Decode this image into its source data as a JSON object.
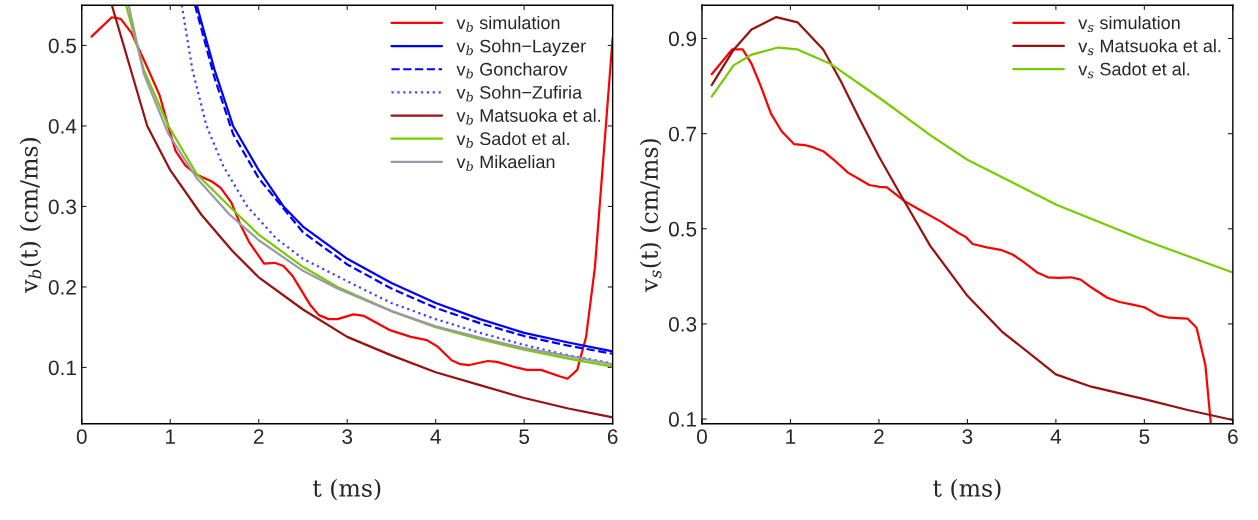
{
  "chart_data": [
    {
      "type": "line",
      "xlabel": "t (ms)",
      "ylabel": "v$_{b}$(t) (cm/ms)",
      "xlim": [
        0,
        6
      ],
      "ylim": [
        0.03,
        0.55
      ],
      "xticks": [
        0,
        1,
        2,
        3,
        4,
        5,
        6
      ],
      "yticks": [
        0.1,
        0.2,
        0.3,
        0.4,
        0.5
      ],
      "grid": false,
      "legend": "top right",
      "series": [
        {
          "name": "v$_{b}$ simulation",
          "color": "#ff0000",
          "line_style": "solid",
          "x": [
            0.11,
            0.34,
            0.44,
            0.56,
            0.74,
            0.88,
            1.0,
            1.06,
            1.17,
            1.29,
            1.47,
            1.57,
            1.69,
            1.79,
            1.89,
            2.06,
            2.18,
            2.28,
            2.38,
            2.58,
            2.68,
            2.79,
            2.89,
            3.07,
            3.19,
            3.49,
            3.72,
            3.9,
            4.02,
            4.18,
            4.28,
            4.38,
            4.59,
            4.69,
            4.91,
            5.03,
            5.19,
            5.4,
            5.49,
            5.6,
            5.7,
            5.8,
            5.9,
            6.0
          ],
          "values": [
            0.511,
            0.535,
            0.533,
            0.516,
            0.473,
            0.438,
            0.391,
            0.369,
            0.351,
            0.34,
            0.331,
            0.323,
            0.305,
            0.278,
            0.256,
            0.229,
            0.23,
            0.226,
            0.214,
            0.178,
            0.165,
            0.16,
            0.16,
            0.166,
            0.164,
            0.146,
            0.138,
            0.134,
            0.126,
            0.109,
            0.104,
            0.103,
            0.108,
            0.107,
            0.1,
            0.097,
            0.097,
            0.089,
            0.086,
            0.097,
            0.138,
            0.225,
            0.367,
            0.509
          ]
        },
        {
          "name": "v$_{b}$ Sohn−Layzer",
          "color": "#0000ff",
          "line_style": "solid",
          "x": [
            1.3,
            1.5,
            1.71,
            2.0,
            2.28,
            2.5,
            3.0,
            3.5,
            4.0,
            4.5,
            5.0,
            5.5,
            6.0
          ],
          "values": [
            0.55,
            0.47,
            0.4,
            0.345,
            0.3,
            0.275,
            0.235,
            0.205,
            0.18,
            0.16,
            0.143,
            0.131,
            0.12
          ]
        },
        {
          "name": "v$_{b}$ Goncharov",
          "color": "#0000ff",
          "line_style": "dashed",
          "x": [
            1.28,
            1.5,
            1.71,
            2.0,
            2.5,
            3.0,
            3.5,
            4.0,
            4.5,
            5.0,
            5.5,
            6.0
          ],
          "values": [
            0.55,
            0.46,
            0.39,
            0.335,
            0.268,
            0.228,
            0.198,
            0.174,
            0.155,
            0.139,
            0.127,
            0.117
          ]
        },
        {
          "name": "v$_{b}$ Sohn−Zufiria",
          "color": "#4040ff",
          "line_style": "dotted",
          "x": [
            1.13,
            1.25,
            1.41,
            1.6,
            1.87,
            2.2,
            2.5,
            3.13,
            3.5,
            4.0,
            4.5,
            5.0,
            5.5,
            6.0
          ],
          "values": [
            0.55,
            0.47,
            0.4,
            0.35,
            0.3,
            0.26,
            0.235,
            0.2,
            0.18,
            0.16,
            0.143,
            0.128,
            0.115,
            0.105
          ]
        },
        {
          "name": "v$_{b}$ Matsuoka et al.",
          "color": "#991111",
          "line_style": "solid",
          "x": [
            0.34,
            0.5,
            0.74,
            1.0,
            1.35,
            1.7,
            2.0,
            2.5,
            3.0,
            3.5,
            4.0,
            4.5,
            5.0,
            5.5,
            6.0
          ],
          "values": [
            0.55,
            0.49,
            0.4,
            0.345,
            0.29,
            0.245,
            0.212,
            0.172,
            0.138,
            0.115,
            0.094,
            0.078,
            0.062,
            0.049,
            0.038
          ]
        },
        {
          "name": "v$_{b}$ Sadot et al.",
          "color": "#77cc00",
          "line_style": "solid",
          "x": [
            0.5,
            0.7,
            0.98,
            1.3,
            1.67,
            2.0,
            2.5,
            2.89,
            3.5,
            4.0,
            4.5,
            5.0,
            5.5,
            6.0
          ],
          "values": [
            0.55,
            0.47,
            0.4,
            0.34,
            0.3,
            0.265,
            0.225,
            0.2,
            0.17,
            0.15,
            0.135,
            0.122,
            0.111,
            0.101
          ]
        },
        {
          "name": "v$_{b}$ Mikaelian",
          "color": "#9999aa",
          "line_style": "solid",
          "x": [
            0.53,
            0.7,
            0.98,
            1.3,
            1.67,
            2.0,
            2.5,
            2.89,
            3.5,
            4.0,
            4.5,
            5.0,
            5.5,
            6.0
          ],
          "values": [
            0.55,
            0.465,
            0.39,
            0.335,
            0.29,
            0.258,
            0.22,
            0.198,
            0.17,
            0.151,
            0.137,
            0.124,
            0.114,
            0.104
          ]
        }
      ]
    },
    {
      "type": "line",
      "xlabel": "t (ms)",
      "ylabel": "v$_{s}$(t) (cm/ms)",
      "xlim": [
        0,
        6
      ],
      "ylim": [
        0.09,
        0.97
      ],
      "xticks": [
        0,
        1,
        2,
        3,
        4,
        5,
        6
      ],
      "yticks": [
        0.1,
        0.3,
        0.5,
        0.7,
        0.9
      ],
      "grid": false,
      "legend": "top right",
      "series": [
        {
          "name": "v$_{s}$ simulation",
          "color": "#ff0000",
          "line_style": "solid",
          "x": [
            0.11,
            0.34,
            0.46,
            0.56,
            0.66,
            0.78,
            0.9,
            1.04,
            1.16,
            1.26,
            1.37,
            1.49,
            1.65,
            1.79,
            1.89,
            2.01,
            2.09,
            2.29,
            2.46,
            2.7,
            2.9,
            2.98,
            3.06,
            3.22,
            3.39,
            3.51,
            3.63,
            3.79,
            3.91,
            4.03,
            4.17,
            4.28,
            4.39,
            4.58,
            4.72,
            4.88,
            5.0,
            5.16,
            5.28,
            5.49,
            5.59,
            5.69,
            5.75
          ],
          "values": [
            0.825,
            0.877,
            0.877,
            0.847,
            0.802,
            0.742,
            0.705,
            0.678,
            0.676,
            0.671,
            0.663,
            0.645,
            0.618,
            0.603,
            0.592,
            0.588,
            0.587,
            0.558,
            0.54,
            0.515,
            0.491,
            0.483,
            0.468,
            0.461,
            0.455,
            0.446,
            0.431,
            0.408,
            0.398,
            0.397,
            0.398,
            0.393,
            0.378,
            0.355,
            0.346,
            0.34,
            0.335,
            0.318,
            0.313,
            0.311,
            0.292,
            0.213,
            0.093
          ]
        },
        {
          "name": "v$_{s}$ Matsuoka et al.",
          "color": "#991111",
          "line_style": "solid",
          "x": [
            0.11,
            0.36,
            0.56,
            0.84,
            1.08,
            1.37,
            1.57,
            1.77,
            2.0,
            2.25,
            2.58,
            3.0,
            3.39,
            4.0,
            4.4,
            5.0,
            5.49,
            6.0
          ],
          "values": [
            0.802,
            0.877,
            0.919,
            0.945,
            0.934,
            0.877,
            0.81,
            0.735,
            0.652,
            0.57,
            0.464,
            0.359,
            0.284,
            0.194,
            0.168,
            0.142,
            0.119,
            0.098
          ]
        },
        {
          "name": "v$_{s}$ Sadot et al.",
          "color": "#77cc00",
          "line_style": "solid",
          "x": [
            0.11,
            0.36,
            0.56,
            0.86,
            1.08,
            1.45,
            2.0,
            2.58,
            3.0,
            4.0,
            5.0,
            6.0
          ],
          "values": [
            0.778,
            0.844,
            0.866,
            0.881,
            0.877,
            0.847,
            0.776,
            0.697,
            0.645,
            0.551,
            0.476,
            0.408
          ]
        }
      ]
    }
  ]
}
